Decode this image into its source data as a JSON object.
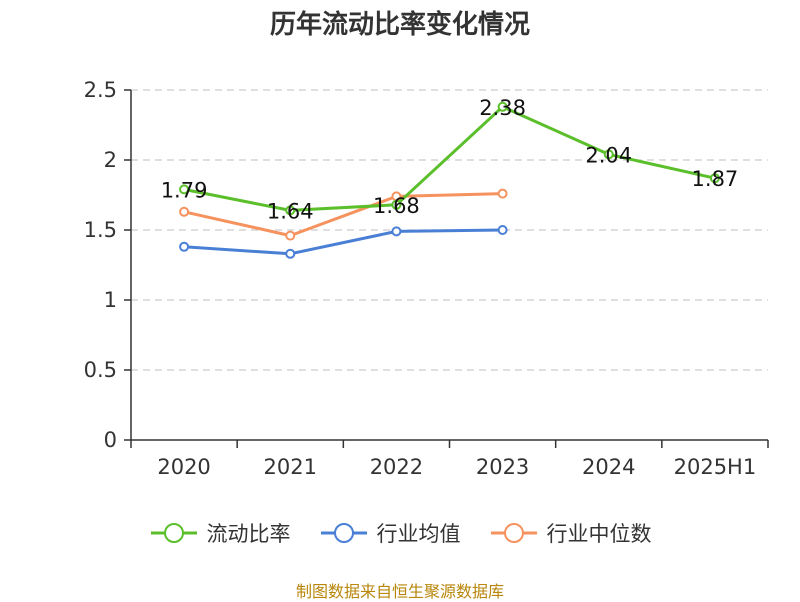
{
  "title": "历年流动比率变化情况",
  "source": "制图数据来自恒生聚源数据库",
  "chart_data": {
    "type": "line",
    "title": "历年流动比率变化情况",
    "categories": [
      "2020",
      "2021",
      "2022",
      "2023",
      "2024",
      "2025H1"
    ],
    "ylim": [
      0,
      2.5
    ],
    "yticks": [
      "0",
      "0.5",
      "1",
      "1.5",
      "2",
      "2.5"
    ],
    "grid": true,
    "legend_position": "bottom",
    "series": [
      {
        "name": "流动比率",
        "color": "#5bbf2b",
        "values": [
          1.79,
          1.64,
          1.68,
          2.38,
          2.04,
          1.87
        ],
        "data_labels": [
          "1.79",
          "1.64",
          "1.68",
          "2.38",
          "2.04",
          "1.87"
        ]
      },
      {
        "name": "行业均值",
        "color": "#4a7fd6",
        "values": [
          1.38,
          1.33,
          1.49,
          1.5,
          null,
          null
        ]
      },
      {
        "name": "行业中位数",
        "color": "#f5925e",
        "values": [
          1.63,
          1.46,
          1.74,
          1.76,
          null,
          null
        ]
      }
    ]
  }
}
